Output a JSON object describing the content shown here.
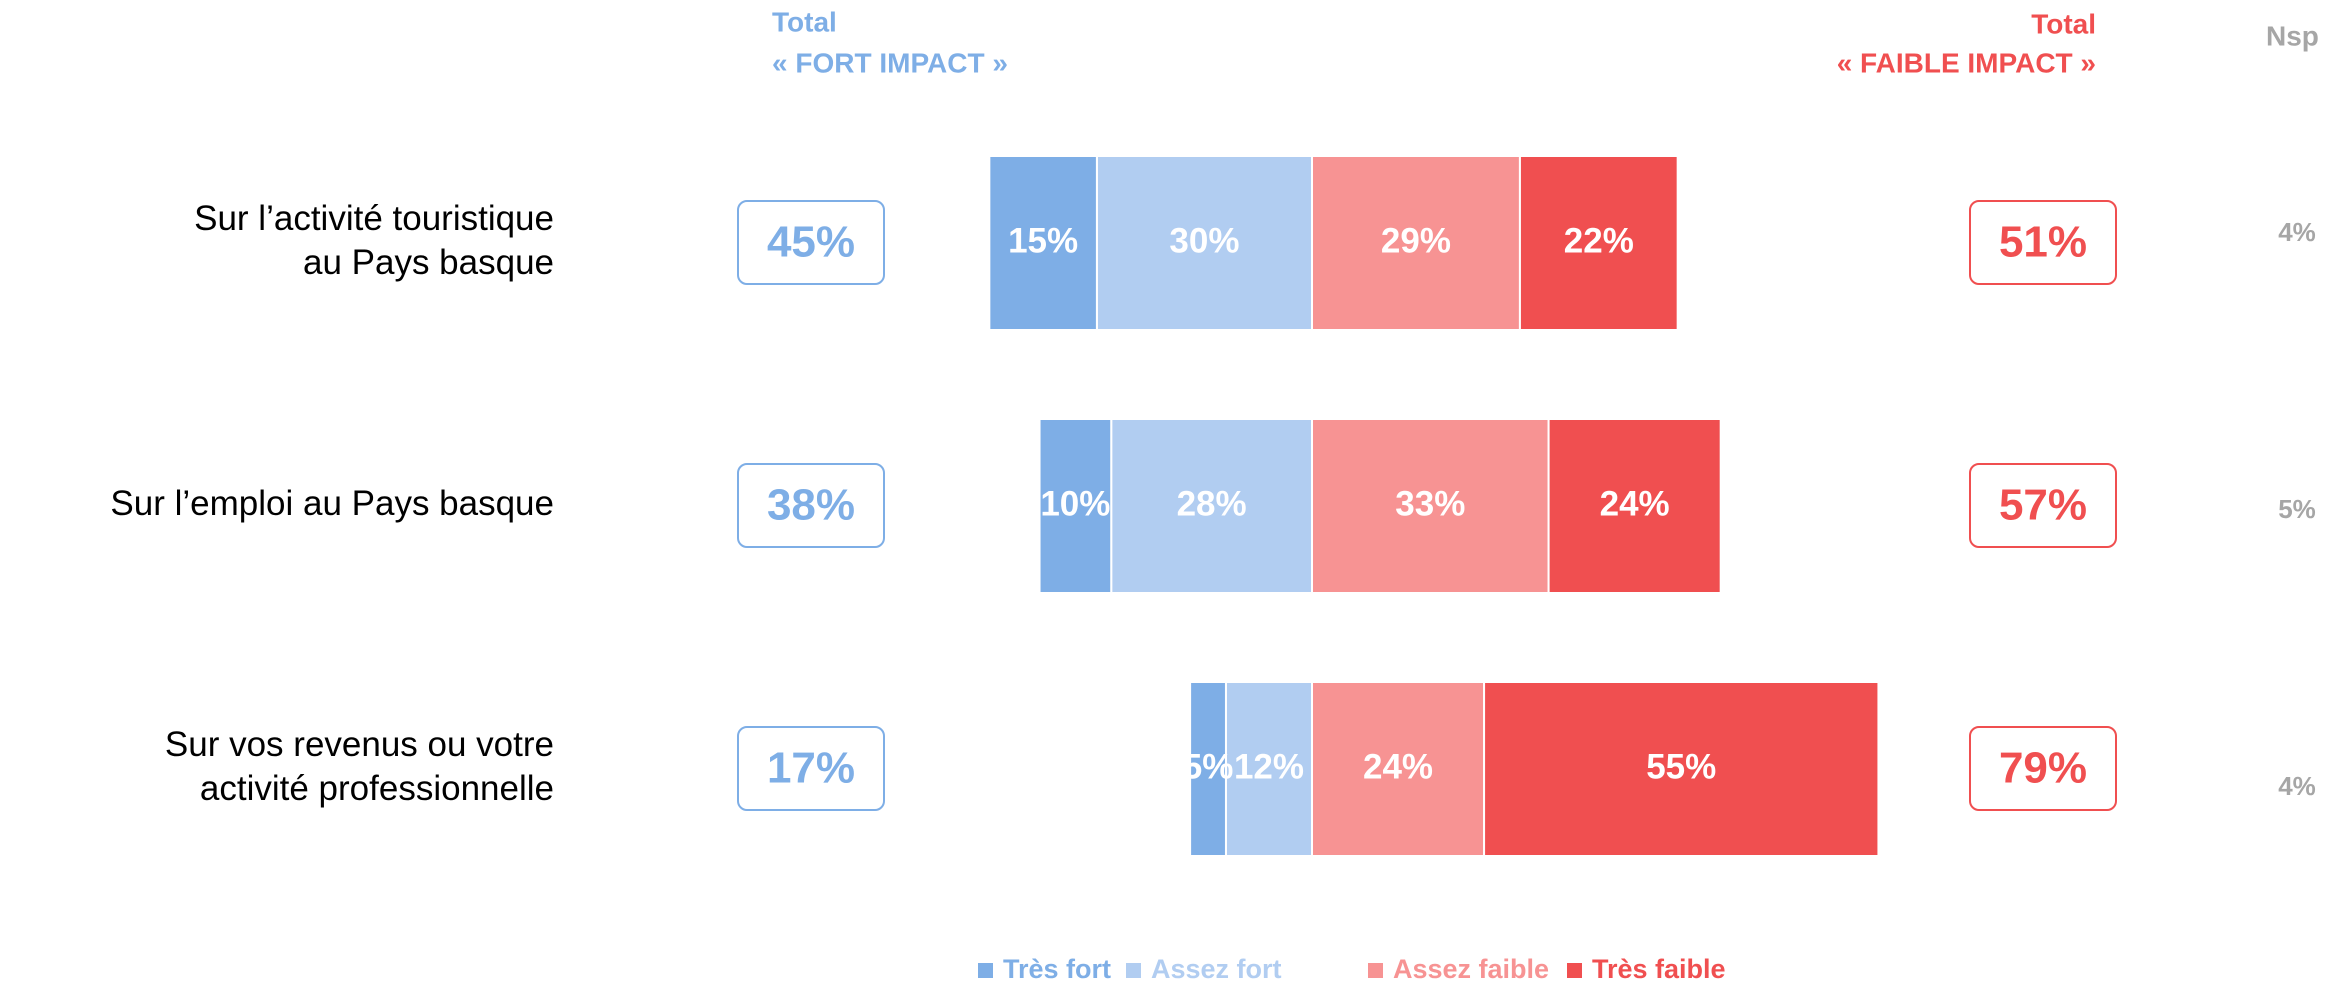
{
  "chart_data": {
    "type": "diverging_bar",
    "header_left": [
      "Total",
      "« FORT IMPACT »"
    ],
    "header_right": [
      "Total",
      "« FAIBLE IMPACT »"
    ],
    "header_nsp": "Nsp",
    "categories": [
      "Sur l’activité touristique au Pays basque",
      "Sur l’emploi au Pays basque",
      "Sur vos revenus ou votre activité professionnelle"
    ],
    "series": [
      {
        "name": "Très fort",
        "color": "#7eaee6",
        "side": "left",
        "values": [
          15,
          10,
          5
        ],
        "value_labels": [
          "15%",
          "10%",
          "5%"
        ]
      },
      {
        "name": "Assez fort",
        "color": "#b1cdf1",
        "side": "left",
        "values": [
          30,
          28,
          12
        ],
        "value_labels": [
          "30%",
          "28%",
          "12%"
        ]
      },
      {
        "name": "Assez faible",
        "color": "#f79393",
        "side": "right",
        "values": [
          29,
          33,
          24
        ],
        "value_labels": [
          "29%",
          "33%",
          "24%"
        ]
      },
      {
        "name": "Très faible",
        "color": "#f04f50",
        "side": "right",
        "values": [
          22,
          24,
          55
        ],
        "value_labels": [
          "22%",
          "24%",
          "55%"
        ]
      }
    ],
    "total_left": {
      "color": "#7eaee6",
      "values": [
        45,
        38,
        17
      ],
      "value_labels": [
        "45%",
        "38%",
        "17%"
      ]
    },
    "total_right": {
      "color": "#f04f50",
      "values": [
        51,
        57,
        79
      ],
      "value_labels": [
        "51%",
        "57%",
        "79%"
      ]
    },
    "nsp": {
      "color": "#a6a6a6",
      "values": [
        4,
        5,
        4
      ],
      "value_labels": [
        "4%",
        "5%",
        "4%"
      ]
    }
  }
}
